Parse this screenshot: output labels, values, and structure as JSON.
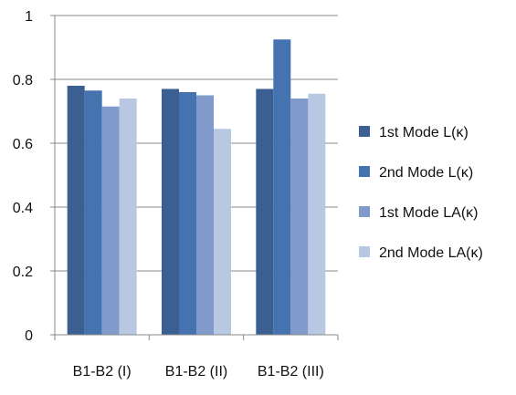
{
  "chart_data": {
    "type": "bar",
    "categories": [
      "B1-B2 (I)",
      "B1-B2 (II)",
      "B1-B2 (III)"
    ],
    "series": [
      {
        "name": "1st Mode L(κ)",
        "color": "#3b5f91",
        "values": [
          0.78,
          0.77,
          0.77
        ]
      },
      {
        "name": "2nd Mode L(κ)",
        "color": "#4573b0",
        "values": [
          0.765,
          0.76,
          0.925
        ]
      },
      {
        "name": "1st Mode LA(κ)",
        "color": "#7f9acb",
        "values": [
          0.715,
          0.75,
          0.74
        ]
      },
      {
        "name": "2nd Mode LA(κ)",
        "color": "#b8c7e2",
        "values": [
          0.74,
          0.645,
          0.755
        ]
      }
    ],
    "ylim": [
      0,
      1
    ],
    "yticks": [
      "0",
      "0.2",
      "0.4",
      "0.6",
      "0.8",
      "1"
    ],
    "ytick_values": [
      0,
      0.2,
      0.4,
      0.6,
      0.8,
      1
    ],
    "grid": true,
    "legend_position": "right",
    "gridline_color": "#8a8a8a",
    "axis_color": "#8a8a8a"
  }
}
